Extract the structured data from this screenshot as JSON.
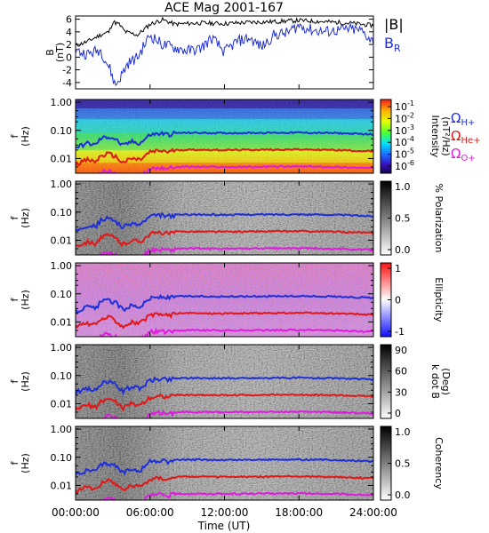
{
  "title": "ACE Mag 2001-167",
  "colors": {
    "bmag": "#000000",
    "br": "#1f2fd8",
    "h": "#1f2fd8",
    "he": "#e01818",
    "o": "#e01ae0"
  },
  "legend": {
    "bmag": "|B|",
    "br": "B",
    "br_sub": "R",
    "h_sym": "Ω",
    "h_sub": "H+",
    "he_sym": "Ω",
    "he_sub": "He+",
    "o_sym": "Ω",
    "o_sub": "O+"
  },
  "x_axis": {
    "ticks": [
      "00:00:00",
      "06:00:00",
      "12:00:00",
      "18:00:00",
      "24:00:00"
    ],
    "label": "Time (UT)",
    "range_hours": [
      0,
      24
    ]
  },
  "chart_data": [
    {
      "type": "line",
      "panel": "B field",
      "ylabel": "B",
      "yunit": "(nT)",
      "yticks": [
        "6",
        "4",
        "2",
        "0",
        "-2",
        "-4"
      ],
      "ylim": [
        -5,
        6.5
      ],
      "x_unit": "UT hours",
      "series": [
        {
          "name": "|B|",
          "x": [
            0,
            1,
            2,
            2.7,
            3,
            3.5,
            4,
            5,
            6,
            7,
            8,
            10,
            12,
            14,
            16,
            18,
            20,
            22,
            24
          ],
          "values": [
            1.8,
            2.5,
            3.5,
            4.0,
            5.6,
            5.2,
            4.0,
            3.5,
            5.2,
            5.9,
            5.2,
            5.4,
            5.3,
            5.5,
            5.6,
            5.8,
            5.6,
            5.4,
            5.0
          ]
        },
        {
          "name": "B",
          "x": [
            0,
            1,
            2,
            2.8,
            3.2,
            3.8,
            4.2,
            5,
            6,
            7,
            8,
            9,
            10,
            11,
            12,
            13,
            14,
            15,
            16,
            17,
            18,
            19,
            20,
            21,
            22,
            23,
            24
          ],
          "values": [
            1.0,
            0.5,
            1.2,
            -2.0,
            -4.5,
            -2.5,
            -1.0,
            0.0,
            3.5,
            2.0,
            1.5,
            1.0,
            1.3,
            3.0,
            0.8,
            2.5,
            3.0,
            1.6,
            3.5,
            3.8,
            5.0,
            4.3,
            4.0,
            4.2,
            4.4,
            4.2,
            2.4
          ]
        }
      ]
    },
    {
      "type": "heatmap",
      "panel": "Intensity",
      "ylabel": "f",
      "yunit": "(Hz)",
      "yticks": [
        "1.00",
        "0.10",
        "0.01"
      ],
      "colorbar_label": "Intensity",
      "colorbar_unit": "(nT²/Hz)",
      "colorbar_ticks": [
        "10",
        "10",
        "10",
        "10",
        "10",
        "10"
      ],
      "colorbar_exps": [
        "-1",
        "-2",
        "-3",
        "-4",
        "-5",
        "-6"
      ]
    },
    {
      "type": "heatmap",
      "panel": "Polarization",
      "ylabel": "f",
      "yunit": "(Hz)",
      "yticks": [
        "1.00",
        "0.10",
        "0.01"
      ],
      "colorbar_label": "% Polarization",
      "colorbar_ticks": [
        "1.0",
        "0.5",
        "0.0"
      ]
    },
    {
      "type": "heatmap",
      "panel": "Ellipticity",
      "ylabel": "f",
      "yunit": "(Hz)",
      "yticks": [
        "1.00",
        "0.10",
        "0.01"
      ],
      "colorbar_label": "Ellipticity",
      "colorbar_ticks": [
        "1",
        "0",
        "-1"
      ]
    },
    {
      "type": "heatmap",
      "panel": "k dot B",
      "ylabel": "f",
      "yunit": "(Hz)",
      "yticks": [
        "1.00",
        "0.10",
        "0.01"
      ],
      "colorbar_label": "k dot B",
      "colorbar_unit": "(Deg)",
      "colorbar_ticks": [
        "90",
        "60",
        "30",
        "0"
      ]
    },
    {
      "type": "heatmap",
      "panel": "Coherency",
      "ylabel": "f",
      "yunit": "(Hz)",
      "yticks": [
        "1.00",
        "0.10",
        "0.01"
      ],
      "colorbar_label": "Coherency",
      "colorbar_ticks": [
        "1.0",
        "0.5",
        "0.0"
      ]
    },
    {
      "type": "line",
      "panel": "gyrofrequencies (overlaid on spectral panels)",
      "x_unit": "UT hours",
      "y_unit": "Hz",
      "x": [
        0,
        1,
        1.6,
        2,
        2.6,
        3.2,
        3.8,
        4.5,
        5.2,
        6,
        7,
        7.5,
        8,
        9,
        12,
        15,
        18,
        21,
        24
      ],
      "series": [
        {
          "name": "ΩH+",
          "values": [
            0.025,
            0.035,
            0.03,
            0.05,
            0.06,
            0.05,
            0.028,
            0.04,
            0.035,
            0.07,
            0.078,
            0.07,
            0.08,
            0.082,
            0.08,
            0.082,
            0.083,
            0.08,
            0.072
          ]
        },
        {
          "name": "ΩHe+",
          "values": [
            0.0065,
            0.009,
            0.0075,
            0.012,
            0.015,
            0.012,
            0.007,
            0.01,
            0.009,
            0.017,
            0.019,
            0.017,
            0.02,
            0.0205,
            0.02,
            0.0205,
            0.021,
            0.02,
            0.018
          ]
        },
        {
          "name": "ΩO+",
          "values": [
            0.0016,
            0.0022,
            0.0019,
            0.003,
            0.0038,
            0.003,
            0.0018,
            0.0025,
            0.0022,
            0.0044,
            0.0048,
            0.0044,
            0.005,
            0.0051,
            0.005,
            0.0051,
            0.0052,
            0.005,
            0.0045
          ]
        }
      ]
    }
  ]
}
